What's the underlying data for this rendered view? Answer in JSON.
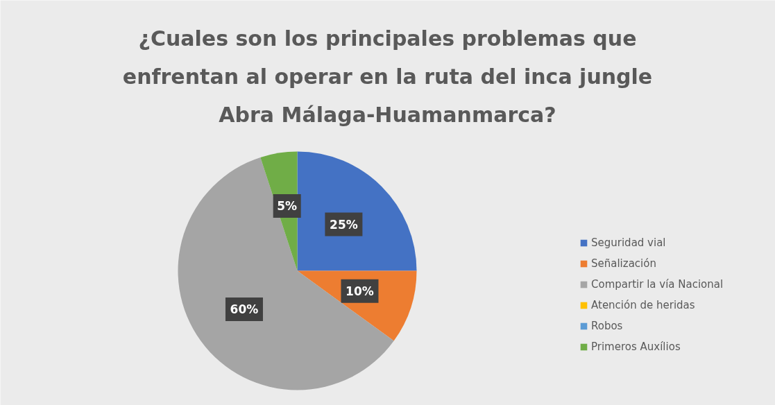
{
  "chart_data": {
    "type": "pie",
    "title": "¿Cuales son los principales problemas que\nenfrentan al operar en la ruta del inca jungle\nAbra Málaga-Huamanmarca?",
    "categories": [
      "Seguridad vial",
      "Señalización",
      "Compartir la vía Nacional",
      "Atención de heridas",
      "Robos",
      "Primeros Auxílios"
    ],
    "values": [
      25,
      10,
      60,
      0,
      0,
      5
    ],
    "colors": [
      "#4472c4",
      "#ed7d31",
      "#a5a5a5",
      "#ffc000",
      "#5b9bd5",
      "#70ad47"
    ],
    "value_labels": [
      "25%",
      "10%",
      "60%",
      null,
      null,
      "5%"
    ],
    "legend": "right"
  }
}
